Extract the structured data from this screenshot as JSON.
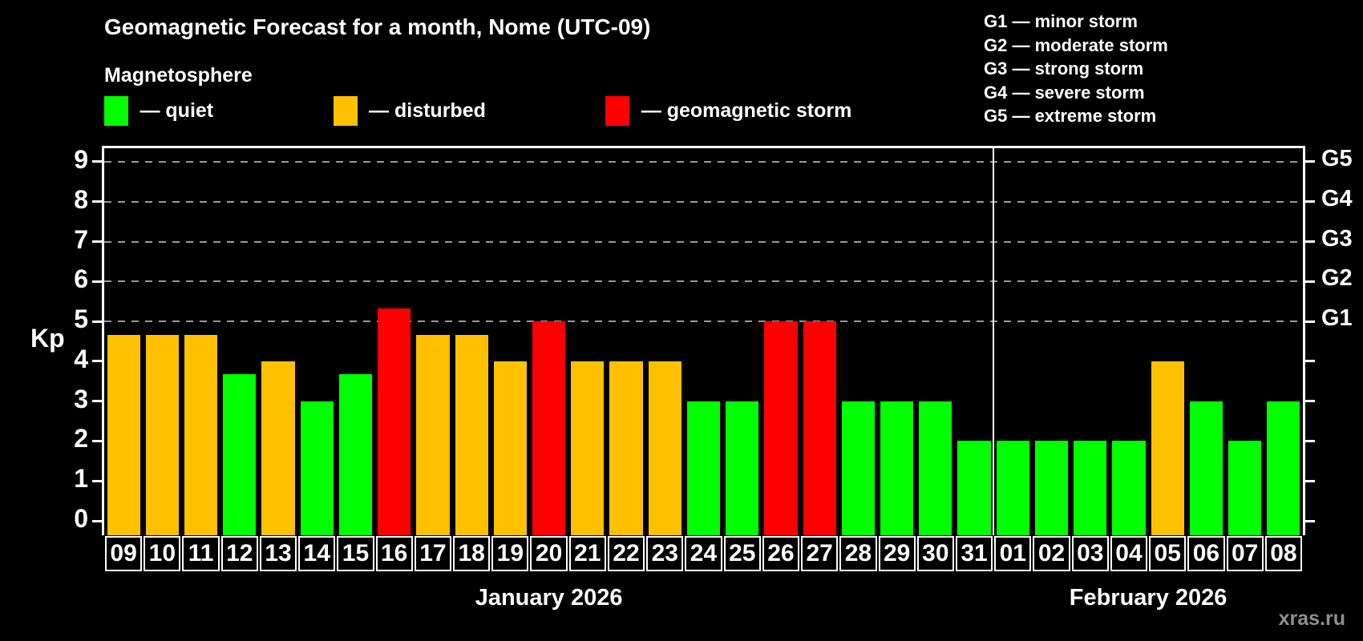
{
  "title": "Geomagnetic Forecast for a month, Nome (UTC-09)",
  "subtitle": "Magnetosphere",
  "legend": {
    "quiet_label": "— quiet",
    "disturbed_label": "— disturbed",
    "storm_label": "— geomagnetic storm"
  },
  "g_legend": [
    "G1 — minor storm",
    "G2 — moderate storm",
    "G3 — strong storm",
    "G4 — severe storm",
    "G5 — extreme storm"
  ],
  "watermark": "xras.ru",
  "chart_data": {
    "type": "bar",
    "kp_axis_label": "Kp",
    "ylim": [
      0,
      9
    ],
    "y_ticks": [
      0,
      1,
      2,
      3,
      4,
      5,
      6,
      7,
      8,
      9
    ],
    "gridlines_at": [
      5,
      6,
      7,
      8,
      9
    ],
    "grid": "dashed, levels 5-9 only",
    "g_scale": [
      {
        "kp": 5,
        "label": "G1"
      },
      {
        "kp": 6,
        "label": "G2"
      },
      {
        "kp": 7,
        "label": "G3"
      },
      {
        "kp": 8,
        "label": "G4"
      },
      {
        "kp": 9,
        "label": "G5"
      }
    ],
    "months": [
      {
        "label": "January 2026",
        "days_count": 23
      },
      {
        "label": "February 2026",
        "days_count": 8
      }
    ],
    "colors": {
      "quiet": "#00FF00",
      "disturbed": "#FFC000",
      "storm": "#FF0000",
      "background": "#000000",
      "text": "#FFFFFF",
      "grid": "#999999",
      "watermark": "#8F8F8F"
    },
    "days": [
      {
        "day": "09",
        "kp": 4.67,
        "status": "disturbed"
      },
      {
        "day": "10",
        "kp": 4.67,
        "status": "disturbed"
      },
      {
        "day": "11",
        "kp": 4.67,
        "status": "disturbed"
      },
      {
        "day": "12",
        "kp": 3.67,
        "status": "quiet"
      },
      {
        "day": "13",
        "kp": 4.0,
        "status": "disturbed"
      },
      {
        "day": "14",
        "kp": 3.0,
        "status": "quiet"
      },
      {
        "day": "15",
        "kp": 3.67,
        "status": "quiet"
      },
      {
        "day": "16",
        "kp": 5.33,
        "status": "storm"
      },
      {
        "day": "17",
        "kp": 4.67,
        "status": "disturbed"
      },
      {
        "day": "18",
        "kp": 4.67,
        "status": "disturbed"
      },
      {
        "day": "19",
        "kp": 4.0,
        "status": "disturbed"
      },
      {
        "day": "20",
        "kp": 5.0,
        "status": "storm"
      },
      {
        "day": "21",
        "kp": 4.0,
        "status": "disturbed"
      },
      {
        "day": "22",
        "kp": 4.0,
        "status": "disturbed"
      },
      {
        "day": "23",
        "kp": 4.0,
        "status": "disturbed"
      },
      {
        "day": "24",
        "kp": 3.0,
        "status": "quiet"
      },
      {
        "day": "25",
        "kp": 3.0,
        "status": "quiet"
      },
      {
        "day": "26",
        "kp": 5.0,
        "status": "storm"
      },
      {
        "day": "27",
        "kp": 5.0,
        "status": "storm"
      },
      {
        "day": "28",
        "kp": 3.0,
        "status": "quiet"
      },
      {
        "day": "29",
        "kp": 3.0,
        "status": "quiet"
      },
      {
        "day": "30",
        "kp": 3.0,
        "status": "quiet"
      },
      {
        "day": "31",
        "kp": 2.0,
        "status": "quiet"
      },
      {
        "day": "01",
        "kp": 2.0,
        "status": "quiet"
      },
      {
        "day": "02",
        "kp": 2.0,
        "status": "quiet"
      },
      {
        "day": "03",
        "kp": 2.0,
        "status": "quiet"
      },
      {
        "day": "04",
        "kp": 2.0,
        "status": "quiet"
      },
      {
        "day": "05",
        "kp": 4.0,
        "status": "disturbed"
      },
      {
        "day": "06",
        "kp": 3.0,
        "status": "quiet"
      },
      {
        "day": "07",
        "kp": 2.0,
        "status": "quiet"
      },
      {
        "day": "08",
        "kp": 3.0,
        "status": "quiet"
      }
    ]
  }
}
